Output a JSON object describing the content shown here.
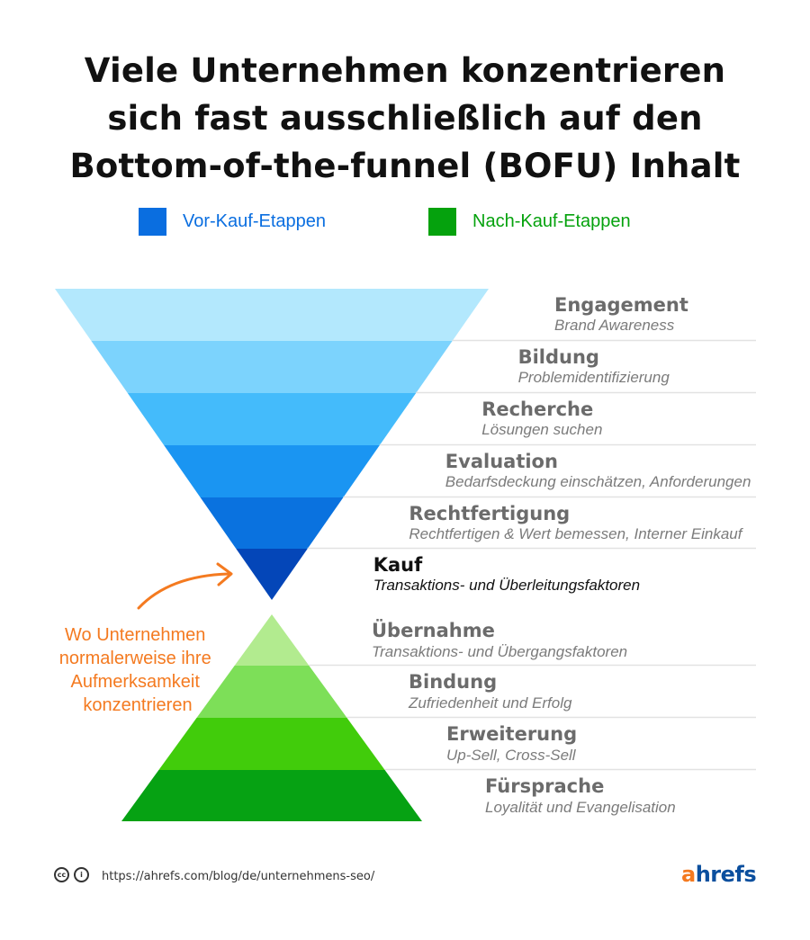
{
  "title": {
    "line1": "Viele Unternehmen konzentrieren",
    "line2": "sich fast ausschließlich auf den",
    "line3": "Bottom-of-the-funnel (BOFU) Inhalt"
  },
  "legend": [
    {
      "label": "Vor-Kauf-Etappen",
      "color": "#0a6ee0"
    },
    {
      "label": "Nach-Kauf-Etappen",
      "color": "#05a20d"
    }
  ],
  "funnel_stages": [
    {
      "title": "Engagement",
      "subtitle": "Brand Awareness",
      "color": "#b3e8fd"
    },
    {
      "title": "Bildung",
      "subtitle": "Problemidentifizierung",
      "color": "#7cd3fd"
    },
    {
      "title": "Recherche",
      "subtitle": "Lösungen suchen",
      "color": "#44bbfb"
    },
    {
      "title": "Evaluation",
      "subtitle": "Bedarfsdeckung einschätzen, Anforderungen",
      "color": "#1a95f2"
    },
    {
      "title": "Rechtfertigung",
      "subtitle": "Rechtfertigen & Wert bemessen, Interner Einkauf",
      "color": "#0a72df"
    },
    {
      "title": "Kauf",
      "subtitle": "Transaktions- und Überleitungsfaktoren",
      "color": "#0446b8"
    }
  ],
  "pyramid_stages": [
    {
      "title": "Übernahme",
      "subtitle": "Transaktions- und Übergangsfaktoren",
      "color": "#b2eb8f"
    },
    {
      "title": "Bindung",
      "subtitle": "Zufriedenheit und Erfolg",
      "color": "#7ddf58"
    },
    {
      "title": "Erweiterung",
      "subtitle": "Up-Sell, Cross-Sell",
      "color": "#41cc0b"
    },
    {
      "title": "Fürsprache",
      "subtitle": "Loyalität und Evangelisation",
      "color": "#06a213"
    }
  ],
  "annotation": {
    "lines": [
      "Wo Unternehmen",
      "normalerweise ihre",
      "Aufmerksamkeit",
      "konzentrieren"
    ],
    "color": "#f47a20"
  },
  "footer": {
    "url": "https://ahrefs.com/blog/de/unternehmens-seo/",
    "logo_a": "a",
    "logo_rest": "hrefs"
  }
}
